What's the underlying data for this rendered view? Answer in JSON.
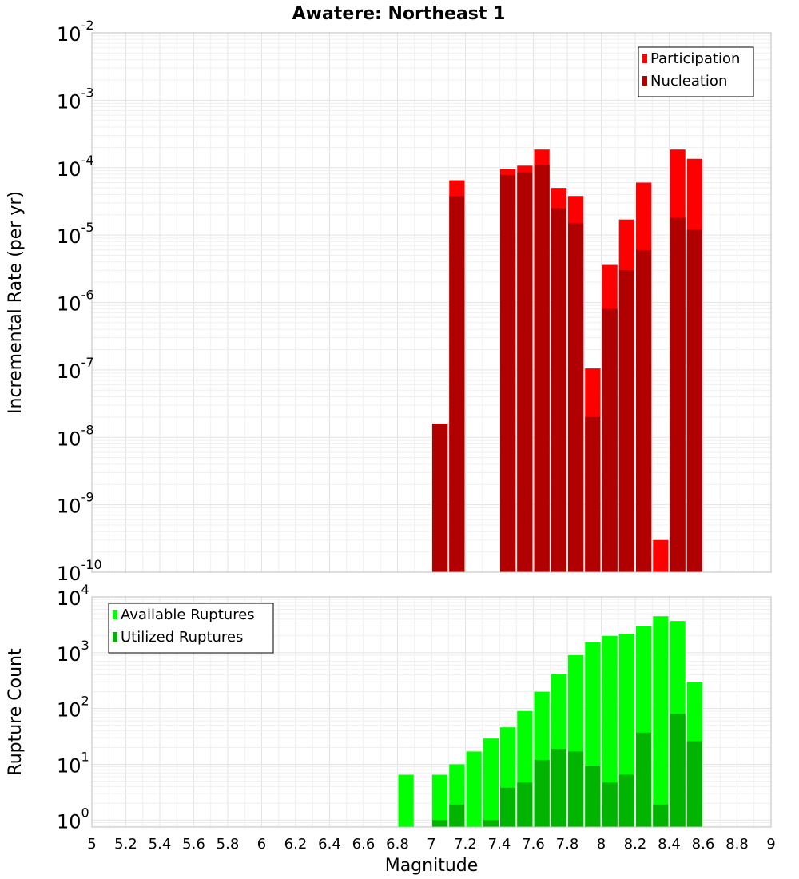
{
  "colors": {
    "participation": "#ff0000",
    "nucleation": "#b00000",
    "available": "#00ff00",
    "utilized": "#00b400"
  },
  "chart_data": [
    {
      "type": "bar",
      "title": "Awatere: Northeast 1",
      "xlabel": "",
      "ylabel": "Incremental Rate (per yr)",
      "yscale": "log",
      "ylim": [
        1e-10,
        0.01
      ],
      "ytick_exponents": [
        "-2",
        "-3",
        "-4",
        "-5",
        "-6",
        "-7",
        "-8",
        "-9",
        "-10"
      ],
      "xlim": [
        5,
        9
      ],
      "bar_width": 0.1,
      "legend_position": "top-right",
      "series": [
        {
          "name": "Participation",
          "color_key": "participation",
          "x": [
            7.05,
            7.15,
            7.45,
            7.55,
            7.65,
            7.75,
            7.85,
            7.95,
            8.05,
            8.15,
            8.25,
            8.35,
            8.45,
            8.55
          ],
          "values": [
            1.6e-08,
            6.5e-05,
            9.5e-05,
            0.000107,
            0.000185,
            5e-05,
            3.8e-05,
            1.05e-07,
            3.6e-06,
            1.7e-05,
            6e-05,
            3e-10,
            0.000185,
            0.000135
          ]
        },
        {
          "name": "Nucleation",
          "color_key": "nucleation",
          "x": [
            7.05,
            7.15,
            7.45,
            7.55,
            7.65,
            7.75,
            7.85,
            7.95,
            8.05,
            8.15,
            8.25,
            8.45,
            8.55
          ],
          "values": [
            1.6e-08,
            3.8e-05,
            7.8e-05,
            8.5e-05,
            0.00011,
            2.5e-05,
            1.5e-05,
            2e-08,
            8e-07,
            3e-06,
            6e-06,
            1.8e-05,
            1.2e-05
          ]
        }
      ]
    },
    {
      "type": "bar",
      "xlabel": "Magnitude",
      "ylabel": "Rupture Count",
      "yscale": "log",
      "ylim": [
        0.75,
        10000
      ],
      "ytick_exponents": [
        "4",
        "3",
        "2",
        "1",
        "0"
      ],
      "xlim": [
        5,
        9
      ],
      "x_ticks": [
        "5",
        "5.2",
        "5.4",
        "5.6",
        "5.8",
        "6",
        "6.2",
        "6.4",
        "6.6",
        "6.8",
        "7",
        "7.2",
        "7.4",
        "7.6",
        "7.8",
        "8",
        "8.2",
        "8.4",
        "8.6",
        "8.8",
        "9"
      ],
      "bar_width": 0.1,
      "legend_position": "top-left",
      "series": [
        {
          "name": "Available Ruptures",
          "color_key": "available",
          "x": [
            6.85,
            7.05,
            7.15,
            7.25,
            7.35,
            7.45,
            7.55,
            7.65,
            7.75,
            7.85,
            7.95,
            8.05,
            8.15,
            8.25,
            8.35,
            8.45,
            8.55
          ],
          "values": [
            6.5,
            6.5,
            10,
            17,
            29,
            46,
            90,
            200,
            420,
            900,
            1550,
            2000,
            2200,
            3000,
            4500,
            3700,
            300
          ]
        },
        {
          "name": "Utilized Ruptures",
          "color_key": "utilized",
          "x": [
            7.05,
            7.15,
            7.35,
            7.45,
            7.55,
            7.65,
            7.75,
            7.85,
            7.95,
            8.05,
            8.15,
            8.25,
            8.35,
            8.45,
            8.55
          ],
          "values": [
            1,
            1.9,
            1,
            3.8,
            4.7,
            12,
            19,
            17,
            9.5,
            4.7,
            6.5,
            37,
            1.9,
            80,
            26
          ]
        }
      ]
    }
  ]
}
